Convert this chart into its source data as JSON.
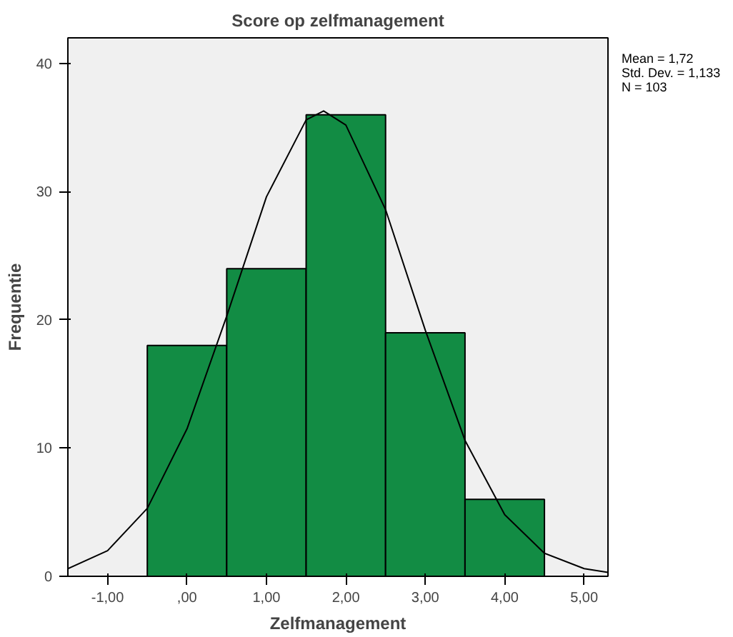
{
  "chart_data": {
    "type": "histogram",
    "title": "Score op zelfmanagement",
    "xlabel": "Zelfmanagement",
    "ylabel": "Frequentie",
    "bins": [
      -0.5,
      0.5,
      1.5,
      2.5,
      3.5,
      4.5
    ],
    "values": [
      18,
      24,
      36,
      19,
      6
    ],
    "color": "#128c44",
    "series": [
      {
        "type": "line",
        "color": "#000000",
        "x": [
          -1.5,
          -1,
          -0.5,
          0,
          0.5,
          1,
          1.5,
          1.72,
          2,
          2.5,
          3,
          3.5,
          4,
          4.5,
          5,
          5.3
        ],
        "values": [
          0.6,
          2,
          5.3,
          11.5,
          20.3,
          29.6,
          35.6,
          36.3,
          35.2,
          28.6,
          19.2,
          10.6,
          4.8,
          1.8,
          0.6,
          0.3
        ]
      }
    ],
    "annotations": [
      "Mean = 1,72",
      "Std. Dev. = 1,133",
      "N = 103"
    ],
    "xlim": [
      -1.5,
      5.3
    ],
    "ylim": [
      0,
      42
    ],
    "xticks": [
      {
        "value": -1,
        "label": "-1,00"
      },
      {
        "value": 0,
        "label": ",00"
      },
      {
        "value": 1,
        "label": "1,00"
      },
      {
        "value": 2,
        "label": "2,00"
      },
      {
        "value": 3,
        "label": "3,00"
      },
      {
        "value": 4,
        "label": "4,00"
      },
      {
        "value": 5,
        "label": "5,00"
      }
    ],
    "yticks": [
      0,
      10,
      20,
      30,
      40
    ],
    "grid": false
  }
}
